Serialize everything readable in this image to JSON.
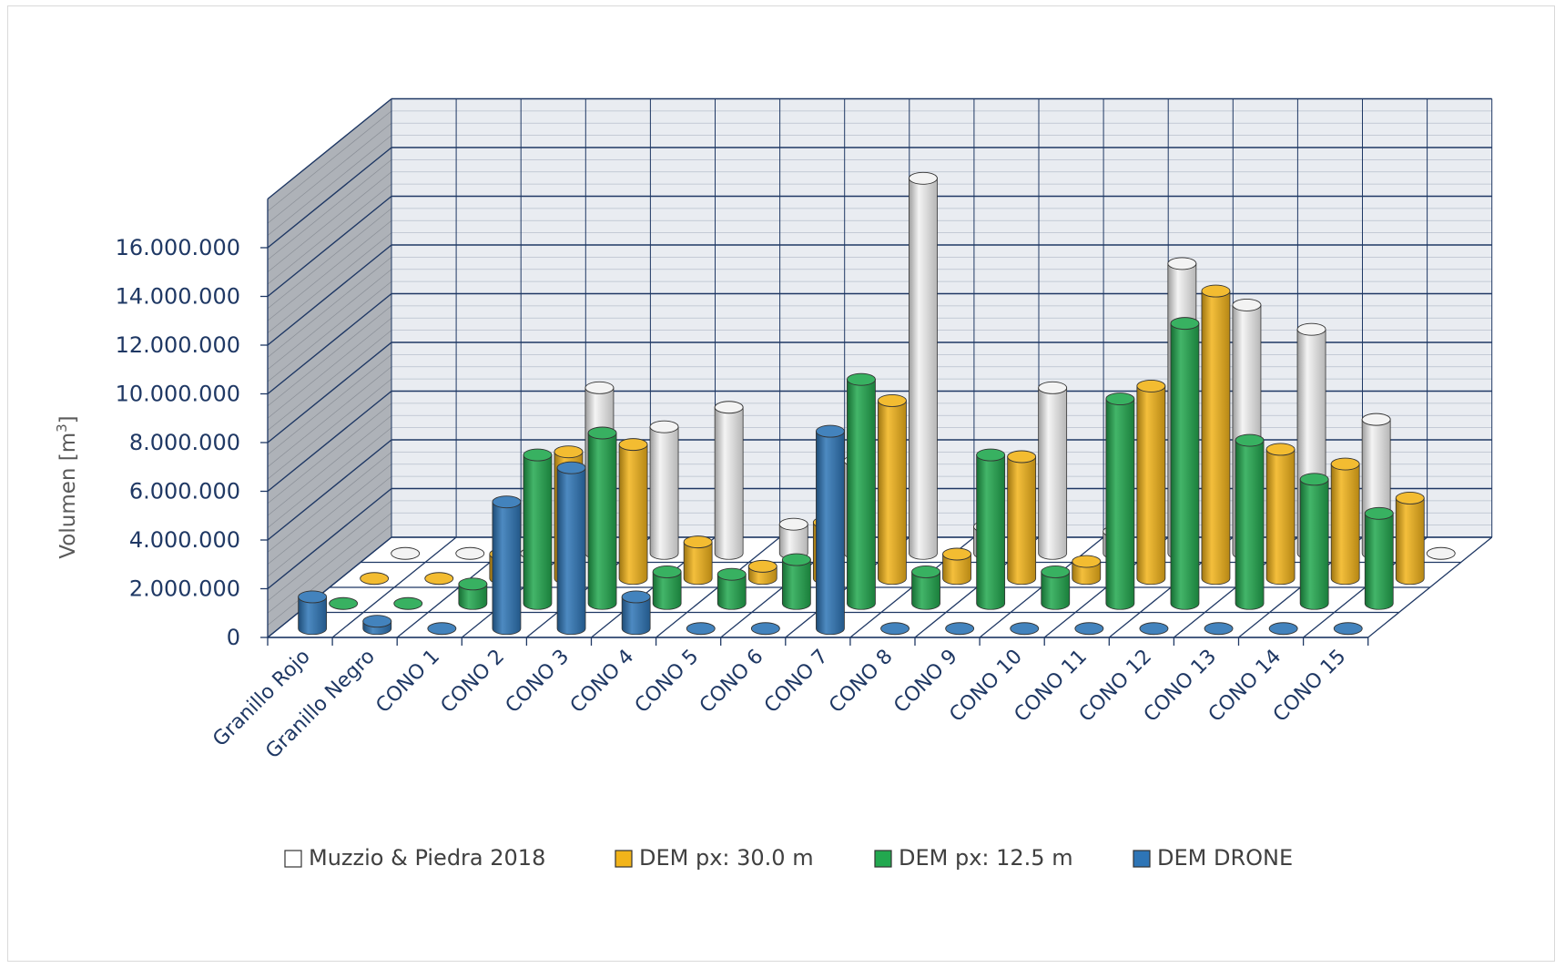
{
  "chart_data": {
    "type": "bar",
    "title": "",
    "xlabel": "",
    "ylabel": "Volumen [m³]",
    "ylim": [
      0,
      16000000
    ],
    "ytick_labels": [
      "0",
      "2.000.000",
      "4.000.000",
      "6.000.000",
      "8.000.000",
      "10.000.000",
      "12.000.000",
      "14.000.000",
      "16.000.000"
    ],
    "yticks": [
      0,
      2000000,
      4000000,
      6000000,
      8000000,
      10000000,
      12000000,
      14000000,
      16000000
    ],
    "grid": true,
    "legend_position": "bottom",
    "categories": [
      "Granillo Rojo",
      "Granillo Negro",
      "CONO 1",
      "CONO 2",
      "CONO 3",
      "CONO 4",
      "CONO 5",
      "CONO 6",
      "CONO 7",
      "CONO 8",
      "CONO 9",
      "CONO 10",
      "CONO 11",
      "CONO 12",
      "CONO 13",
      "CONO 14",
      "CONO 15"
    ],
    "series": [
      {
        "name": "DEM DRONE",
        "color": "#2e75b6",
        "values": [
          1300000,
          300000,
          0,
          5200000,
          6600000,
          1300000,
          0,
          0,
          8100000,
          0,
          0,
          0,
          0,
          0,
          0,
          0,
          0
        ]
      },
      {
        "name": "DEM px: 12.5 m",
        "color": "#22a84f",
        "values": [
          0,
          0,
          800000,
          6100000,
          7000000,
          1300000,
          1200000,
          1800000,
          9200000,
          1300000,
          6100000,
          1300000,
          8400000,
          11500000,
          6700000,
          5100000,
          3700000
        ]
      },
      {
        "name": "DEM px: 30.0 m",
        "color": "#f2b41a",
        "values": [
          0,
          0,
          1000000,
          5200000,
          5500000,
          1500000,
          500000,
          2300000,
          7300000,
          1000000,
          5000000,
          700000,
          7900000,
          11800000,
          5300000,
          4700000,
          3300000
        ]
      },
      {
        "name": "Muzzio & Piedra 2018",
        "color": "#f2f2f2",
        "values": [
          0,
          0,
          0,
          6800000,
          5200000,
          6000000,
          1200000,
          3800000,
          15400000,
          1100000,
          6800000,
          900000,
          11900000,
          10200000,
          9200000,
          5500000,
          0
        ]
      }
    ],
    "legend_order": [
      "Muzzio & Piedra 2018",
      "DEM px: 30.0 m",
      "DEM px: 12.5 m",
      "DEM DRONE"
    ]
  }
}
